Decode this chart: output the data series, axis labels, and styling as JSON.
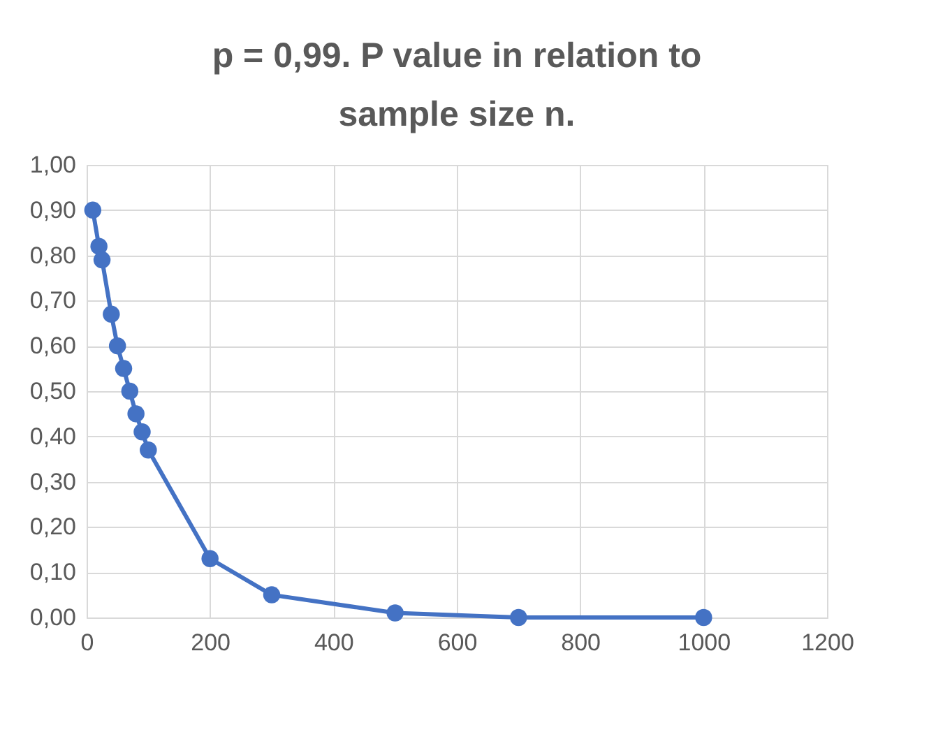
{
  "chart_data": {
    "type": "line",
    "title": "p = 0,99. P value in relation to sample size n.",
    "x": [
      10,
      20,
      25,
      40,
      50,
      60,
      70,
      80,
      90,
      100,
      200,
      300,
      500,
      700,
      1000
    ],
    "series": [
      {
        "color": "#4472c4",
        "values": [
          0.9,
          0.82,
          0.79,
          0.67,
          0.6,
          0.55,
          0.5,
          0.45,
          0.41,
          0.37,
          0.13,
          0.05,
          0.01,
          0.0,
          0.0
        ]
      }
    ],
    "xlim": [
      0,
      1200
    ],
    "xticks": [
      0,
      200,
      400,
      600,
      800,
      1000,
      1200
    ],
    "ylim": [
      0,
      1
    ],
    "yticks": [
      {
        "value": 0,
        "label": "0,00"
      },
      {
        "value": 0.1,
        "label": "0,10"
      },
      {
        "value": 0.2,
        "label": "0,20"
      },
      {
        "value": 0.3,
        "label": "0,30"
      },
      {
        "value": 0.4,
        "label": "0,40"
      },
      {
        "value": 0.5,
        "label": "0,50"
      },
      {
        "value": 0.6,
        "label": "0,60"
      },
      {
        "value": 0.7,
        "label": "0,70"
      },
      {
        "value": 0.8,
        "label": "0,80"
      },
      {
        "value": 0.9,
        "label": "0,90"
      },
      {
        "value": 1.0,
        "label": "1,00"
      }
    ],
    "grid": true,
    "marker": "circle",
    "line_style": "solid"
  }
}
